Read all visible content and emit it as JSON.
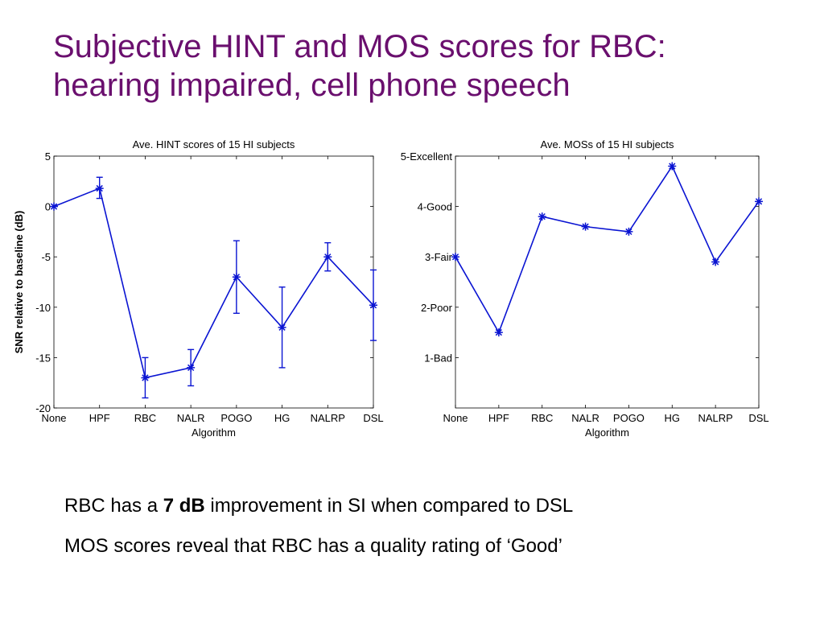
{
  "slide": {
    "title_line1": "Subjective HINT and MOS scores for RBC:",
    "title_line2": "hearing impaired, cell phone speech",
    "bullet1": {
      "pre": "RBC has a ",
      "bold": "7 dB",
      "post": " improvement in SI when compared to DSL"
    },
    "bullet2": "MOS scores reveal that RBC has a quality rating of ‘Good’"
  },
  "colors": {
    "series": "#0a14d2",
    "title": "#6a0f6e"
  },
  "chart_data": [
    {
      "type": "line",
      "title": "Ave. HINT scores of 15 HI subjects",
      "xlabel": "Algorithm",
      "ylabel": "SNR relative to baseline (dB)",
      "categories": [
        "None",
        "HPF",
        "RBC",
        "NALR",
        "POGO",
        "HG",
        "NALRP",
        "DSL"
      ],
      "ylim": [
        -20,
        5
      ],
      "yticks": [
        5,
        0,
        -5,
        -10,
        -15,
        -20
      ],
      "ytick_labels": [
        "5",
        "0",
        "-5",
        "-10",
        "-15",
        "-20"
      ],
      "series": [
        {
          "values": [
            0,
            1.8,
            -17,
            -16,
            -7,
            -12,
            -5,
            -9.8
          ],
          "error_low": [
            0,
            1.0,
            2.0,
            1.8,
            3.6,
            4.0,
            1.4,
            3.5
          ],
          "error_high": [
            0,
            1.1,
            2.0,
            1.8,
            3.6,
            4.0,
            1.4,
            3.5
          ]
        }
      ],
      "grid": false,
      "marker": "asterisk"
    },
    {
      "type": "line",
      "title": "Ave. MOSs of 15 HI subjects",
      "xlabel": "Algorithm",
      "ylabel": "",
      "categories": [
        "None",
        "HPF",
        "RBC",
        "NALR",
        "POGO",
        "HG",
        "NALRP",
        "DSL"
      ],
      "ylim": [
        0,
        5
      ],
      "yticks": [
        5,
        4,
        3,
        2,
        1
      ],
      "ytick_labels": [
        "5-Excellent",
        "4-Good",
        "3-Fair",
        "2-Poor",
        "1-Bad"
      ],
      "series": [
        {
          "values": [
            3.0,
            1.5,
            3.8,
            3.6,
            3.5,
            4.8,
            2.9,
            4.1
          ]
        }
      ],
      "grid": false,
      "marker": "asterisk"
    }
  ]
}
